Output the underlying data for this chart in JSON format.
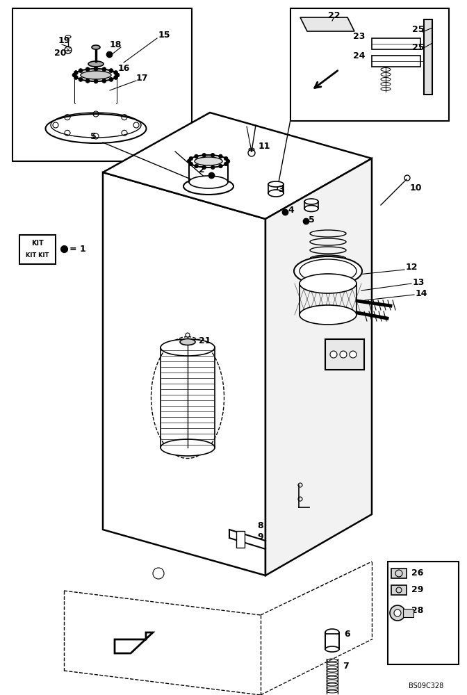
{
  "bg_color": "#ffffff",
  "line_color": "#000000",
  "fig_width": 6.72,
  "fig_height": 10.0,
  "dpi": 100,
  "watermark": "BS09C328"
}
